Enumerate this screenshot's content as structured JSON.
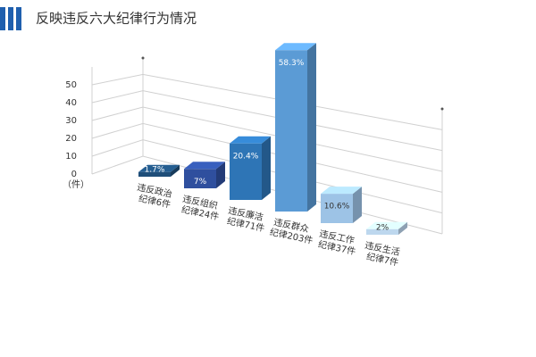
{
  "chart_data": {
    "type": "bar3d",
    "title": "反映违反六大纪律行为情况",
    "y_unit": "（件）",
    "categories": [
      [
        "违反政治",
        "纪律6件"
      ],
      [
        "违反组织",
        "纪律24件"
      ],
      [
        "违反廉洁",
        "纪律71件"
      ],
      [
        "违反群众",
        "纪律203件"
      ],
      [
        "违反工作",
        "纪律37件"
      ],
      [
        "违反生活",
        "纪律7件"
      ]
    ],
    "values": [
      1.7,
      7,
      20.4,
      58.3,
      10.6,
      2
    ],
    "value_labels": [
      "1.7%",
      "7%",
      "20.4%",
      "58.3%",
      "10.6%",
      "2%"
    ],
    "colors": [
      "#1f4e79",
      "#2f4f9e",
      "#2e75b6",
      "#5b9bd5",
      "#9dc3e6",
      "#bdd7ee"
    ],
    "label_colors": [
      "#ffffff",
      "#ffffff",
      "#ffffff",
      "#ffffff",
      "#333333",
      "#333333"
    ],
    "ylim": [
      0,
      60
    ],
    "yticks": [
      0,
      10,
      20,
      30,
      40,
      50
    ],
    "grid": true
  }
}
